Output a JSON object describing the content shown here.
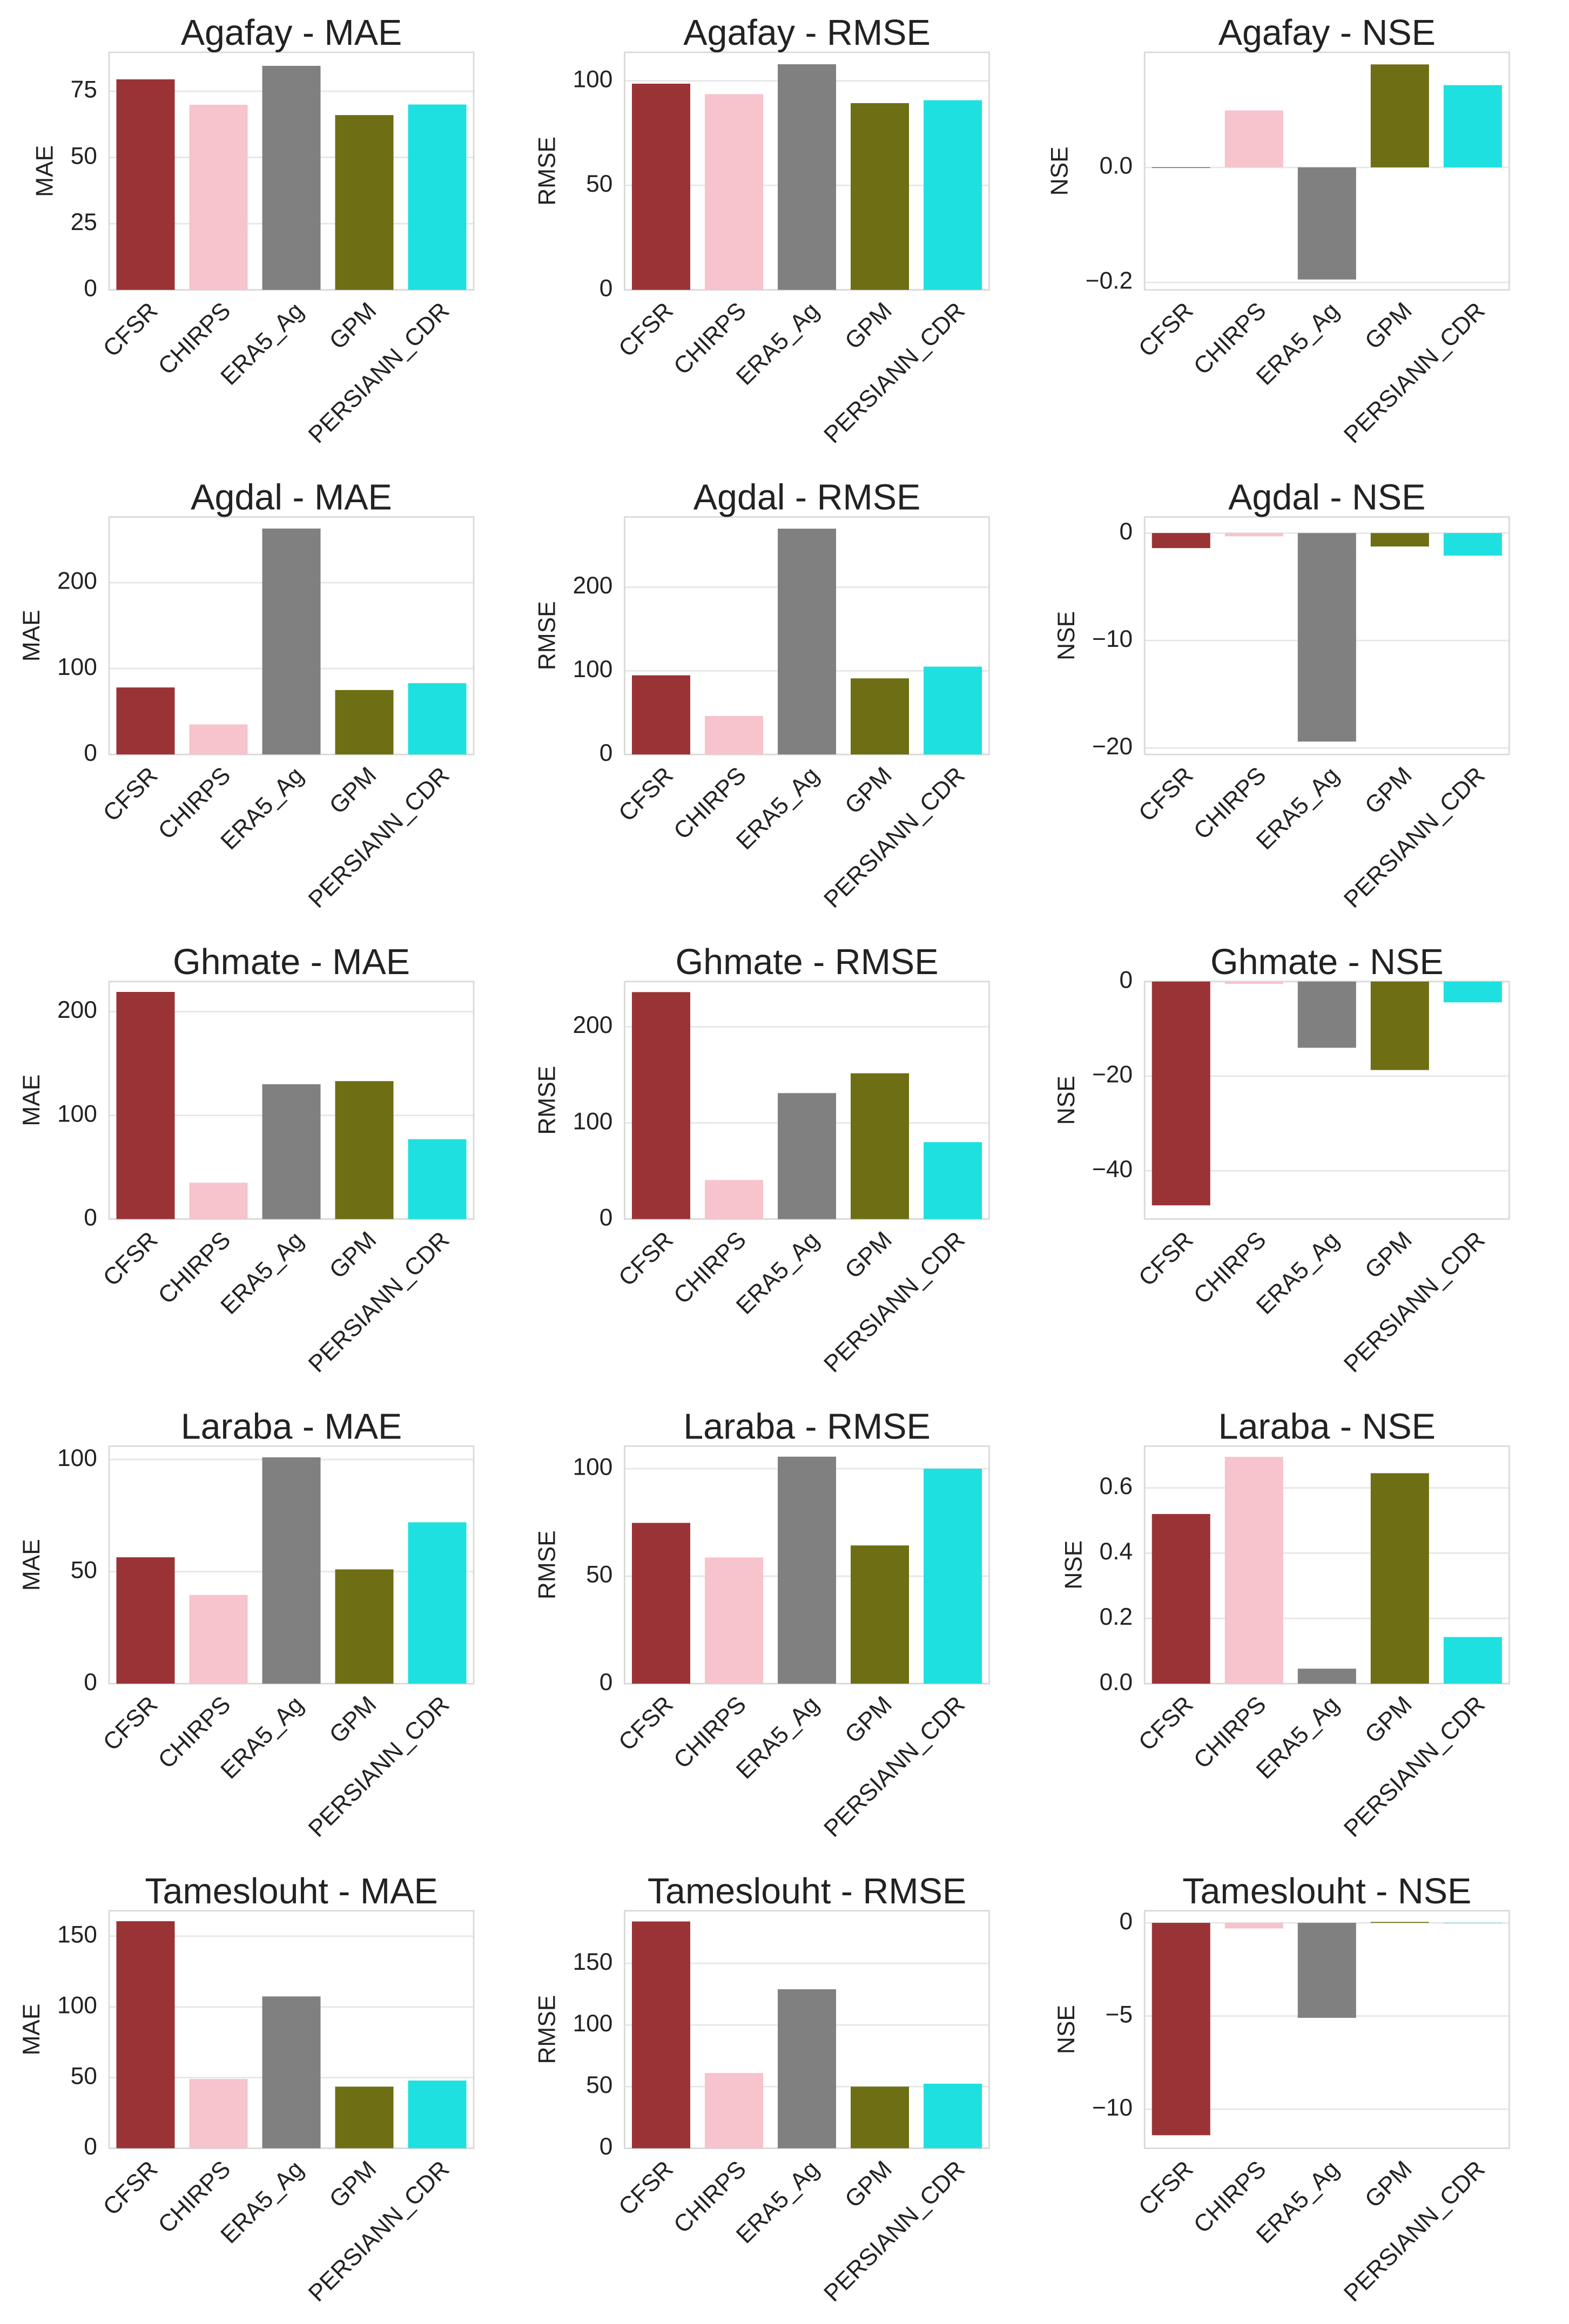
{
  "chart_data": [
    {
      "type": "bar",
      "title": "Agafay - MAE",
      "ylabel": "MAE",
      "categories": [
        "CFSR",
        "CHIRPS",
        "ERA5_Ag",
        "GPM",
        "PERSIANN_CDR"
      ],
      "values": [
        79.5,
        69.9,
        84.6,
        66,
        70
      ],
      "colors": [
        "#993336",
        "#f7c3cc",
        "#808080",
        "#6e6e14",
        "#1fe0e0"
      ],
      "ylim": [
        0,
        89.7
      ],
      "yticks": [
        0,
        25,
        50,
        75
      ]
    },
    {
      "type": "bar",
      "title": "Agafay - RMSE",
      "ylabel": "RMSE",
      "categories": [
        "CFSR",
        "CHIRPS",
        "ERA5_Ag",
        "GPM",
        "PERSIANN_CDR"
      ],
      "values": [
        98.6,
        93.6,
        107.9,
        89.3,
        90.7
      ],
      "colors": [
        "#993336",
        "#f7c3cc",
        "#808080",
        "#6e6e14",
        "#1fe0e0"
      ],
      "ylim": [
        0,
        113.6
      ],
      "yticks": [
        0,
        50,
        100
      ]
    },
    {
      "type": "bar",
      "title": "Agafay - NSE",
      "ylabel": "NSE",
      "categories": [
        "CFSR",
        "CHIRPS",
        "ERA5_Ag",
        "GPM",
        "PERSIANN_CDR"
      ],
      "values": [
        -0.001,
        0.099,
        -0.195,
        0.179,
        0.143
      ],
      "colors": [
        "#993336",
        "#f7c3cc",
        "#808080",
        "#6e6e14",
        "#1fe0e0"
      ],
      "ylim": [
        -0.213,
        0.2
      ],
      "yticks": [
        {
          "value": -0.2,
          "label": "−0.2"
        },
        {
          "value": 0,
          "label": "0.0"
        }
      ]
    },
    {
      "type": "bar",
      "title": "Agdal - MAE",
      "ylabel": "MAE",
      "categories": [
        "CFSR",
        "CHIRPS",
        "ERA5_Ag",
        "GPM",
        "PERSIANN_CDR"
      ],
      "values": [
        78,
        35,
        263,
        75,
        83
      ],
      "colors": [
        "#993336",
        "#f7c3cc",
        "#808080",
        "#6e6e14",
        "#1fe0e0"
      ],
      "ylim": [
        0,
        276.5
      ],
      "yticks": [
        0,
        100,
        200
      ]
    },
    {
      "type": "bar",
      "title": "Agdal - RMSE",
      "ylabel": "RMSE",
      "categories": [
        "CFSR",
        "CHIRPS",
        "ERA5_Ag",
        "GPM",
        "PERSIANN_CDR"
      ],
      "values": [
        94.6,
        46,
        270,
        91,
        105
      ],
      "colors": [
        "#993336",
        "#f7c3cc",
        "#808080",
        "#6e6e14",
        "#1fe0e0"
      ],
      "ylim": [
        0,
        284
      ],
      "yticks": [
        0,
        100,
        200
      ]
    },
    {
      "type": "bar",
      "title": "Agdal - NSE",
      "ylabel": "NSE",
      "categories": [
        "CFSR",
        "CHIRPS",
        "ERA5_Ag",
        "GPM",
        "PERSIANN_CDR"
      ],
      "values": [
        -1.4,
        -0.3,
        -19.4,
        -1.25,
        -2.1
      ],
      "colors": [
        "#993336",
        "#f7c3cc",
        "#808080",
        "#6e6e14",
        "#1fe0e0"
      ],
      "ylim": [
        -20.6,
        1.5
      ],
      "yticks": [
        {
          "value": -20,
          "label": "−20"
        },
        {
          "value": -10,
          "label": "−10"
        },
        0
      ]
    },
    {
      "type": "bar",
      "title": "Ghmate - MAE",
      "ylabel": "MAE",
      "categories": [
        "CFSR",
        "CHIRPS",
        "ERA5_Ag",
        "GPM",
        "PERSIANN_CDR"
      ],
      "values": [
        219,
        35,
        130,
        133,
        77
      ],
      "colors": [
        "#993336",
        "#f7c3cc",
        "#808080",
        "#6e6e14",
        "#1fe0e0"
      ],
      "ylim": [
        0,
        229
      ],
      "yticks": [
        0,
        100,
        200
      ]
    },
    {
      "type": "bar",
      "title": "Ghmate - RMSE",
      "ylabel": "RMSE",
      "categories": [
        "CFSR",
        "CHIRPS",
        "ERA5_Ag",
        "GPM",
        "PERSIANN_CDR"
      ],
      "values": [
        236,
        40.6,
        131,
        151.6,
        80
      ],
      "colors": [
        "#993336",
        "#f7c3cc",
        "#808080",
        "#6e6e14",
        "#1fe0e0"
      ],
      "ylim": [
        0,
        247
      ],
      "yticks": [
        0,
        100,
        200
      ]
    },
    {
      "type": "bar",
      "title": "Ghmate - NSE",
      "ylabel": "NSE",
      "categories": [
        "CFSR",
        "CHIRPS",
        "ERA5_Ag",
        "GPM",
        "PERSIANN_CDR"
      ],
      "values": [
        -47.3,
        -0.5,
        -14,
        -18.7,
        -4.4
      ],
      "colors": [
        "#993336",
        "#f7c3cc",
        "#808080",
        "#6e6e14",
        "#1fe0e0"
      ],
      "ylim": [
        -50.2,
        0
      ],
      "yticks": [
        {
          "value": -40,
          "label": "−40"
        },
        {
          "value": -20,
          "label": "−20"
        },
        0
      ]
    },
    {
      "type": "bar",
      "title": "Laraba - MAE",
      "ylabel": "MAE",
      "categories": [
        "CFSR",
        "CHIRPS",
        "ERA5_Ag",
        "GPM",
        "PERSIANN_CDR"
      ],
      "values": [
        56.4,
        39.6,
        101,
        51,
        72
      ],
      "colors": [
        "#993336",
        "#f7c3cc",
        "#808080",
        "#6e6e14",
        "#1fe0e0"
      ],
      "ylim": [
        0,
        106
      ],
      "yticks": [
        0,
        50,
        100
      ]
    },
    {
      "type": "bar",
      "title": "Laraba - RMSE",
      "ylabel": "RMSE",
      "categories": [
        "CFSR",
        "CHIRPS",
        "ERA5_Ag",
        "GPM",
        "PERSIANN_CDR"
      ],
      "values": [
        74.8,
        58.7,
        105.6,
        64.3,
        100
      ],
      "colors": [
        "#993336",
        "#f7c3cc",
        "#808080",
        "#6e6e14",
        "#1fe0e0"
      ],
      "ylim": [
        0,
        110.5
      ],
      "yticks": [
        0,
        50,
        100
      ]
    },
    {
      "type": "bar",
      "title": "Laraba - NSE",
      "ylabel": "NSE",
      "categories": [
        "CFSR",
        "CHIRPS",
        "ERA5_Ag",
        "GPM",
        "PERSIANN_CDR"
      ],
      "values": [
        0.52,
        0.695,
        0.046,
        0.645,
        0.143
      ],
      "colors": [
        "#993336",
        "#f7c3cc",
        "#808080",
        "#6e6e14",
        "#1fe0e0"
      ],
      "ylim": [
        0,
        0.728
      ],
      "yticks": [
        {
          "value": 0,
          "label": "0.0"
        },
        0.2,
        0.4,
        0.6
      ]
    },
    {
      "type": "bar",
      "title": "Tameslouht - MAE",
      "ylabel": "MAE",
      "categories": [
        "CFSR",
        "CHIRPS",
        "ERA5_Ag",
        "GPM",
        "PERSIANN_CDR"
      ],
      "values": [
        160.6,
        49,
        107.4,
        43.6,
        47.9
      ],
      "colors": [
        "#993336",
        "#f7c3cc",
        "#808080",
        "#6e6e14",
        "#1fe0e0"
      ],
      "ylim": [
        0,
        168
      ],
      "yticks": [
        0,
        50,
        100,
        150
      ]
    },
    {
      "type": "bar",
      "title": "Tameslouht - RMSE",
      "ylabel": "RMSE",
      "categories": [
        "CFSR",
        "CHIRPS",
        "ERA5_Ag",
        "GPM",
        "PERSIANN_CDR"
      ],
      "values": [
        184,
        61,
        129,
        50,
        52.4
      ],
      "colors": [
        "#993336",
        "#f7c3cc",
        "#808080",
        "#6e6e14",
        "#1fe0e0"
      ],
      "ylim": [
        0,
        192.7
      ],
      "yticks": [
        0,
        50,
        100,
        150
      ]
    },
    {
      "type": "bar",
      "title": "Tameslouht - NSE",
      "ylabel": "NSE",
      "categories": [
        "CFSR",
        "CHIRPS",
        "ERA5_Ag",
        "GPM",
        "PERSIANN_CDR"
      ],
      "values": [
        -11.4,
        -0.3,
        -5.1,
        0.05,
        -0.02
      ],
      "colors": [
        "#993336",
        "#f7c3cc",
        "#808080",
        "#6e6e14",
        "#1fe0e0"
      ],
      "ylim": [
        -12.1,
        0.65
      ],
      "yticks": [
        {
          "value": -10,
          "label": "−10"
        },
        {
          "value": -5,
          "label": "−5"
        },
        0
      ]
    }
  ]
}
